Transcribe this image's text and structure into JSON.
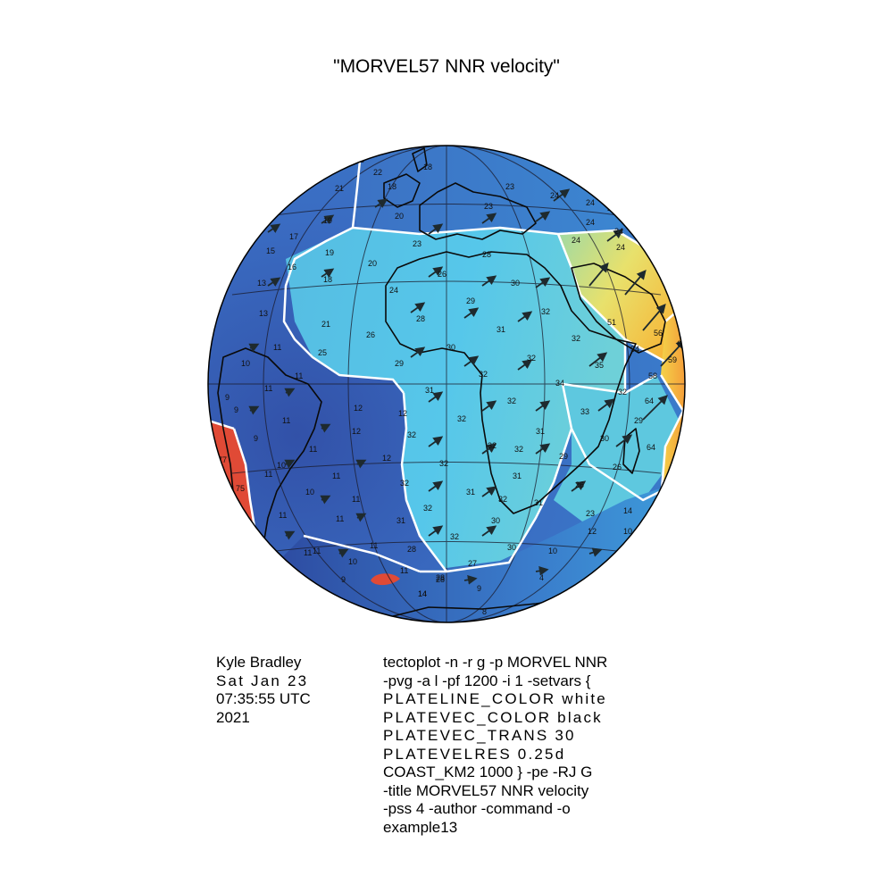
{
  "title": "\"MORVEL57 NNR velocity\"",
  "author": {
    "lines": [
      "Kyle Bradley",
      "Sat Jan 23",
      "07:35:55 UTC",
      "2021"
    ]
  },
  "command": {
    "lines": [
      "tectoplot -n -r g -p MORVEL NNR",
      "-pvg -a l -pf 1200 -i 1 -setvars {",
      "PLATELINE_COLOR white",
      "PLATEVEC_COLOR black",
      "PLATEVEC_TRANS 30",
      "PLATEVELRES 0.25d",
      "COAST_KM2 1000 } -pe -RJ G",
      "-title MORVEL57 NNR velocity",
      "-pss 4 -author -command -o",
      "example13"
    ]
  },
  "velocity_labels": {
    "north_atlantic": [
      "23",
      "22",
      "18",
      "21",
      "18",
      "19",
      "20",
      "17",
      "15",
      "16",
      "18",
      "13",
      "23",
      "21",
      "19",
      "20"
    ],
    "europe": [
      "23",
      "23",
      "24",
      "24",
      "24",
      "24",
      "24",
      "24",
      "24"
    ],
    "africa": [
      "26",
      "28",
      "30",
      "24",
      "29",
      "28",
      "32",
      "31",
      "32",
      "32",
      "26",
      "30",
      "29",
      "32",
      "31",
      "32",
      "32",
      "31",
      "32",
      "32",
      "31",
      "12",
      "32",
      "32",
      "32",
      "31",
      "32",
      "29",
      "30",
      "31",
      "32",
      "30",
      "27",
      "28",
      "32",
      "31",
      "28",
      "34"
    ],
    "arabia_somalia": [
      "51",
      "56",
      "54",
      "35",
      "58",
      "32",
      "33",
      "29",
      "30",
      "26",
      "26",
      "23",
      "12",
      "10",
      "59",
      "60",
      "64",
      "64",
      "14",
      "10"
    ],
    "south_america": [
      "25",
      "11",
      "10",
      "11",
      "11",
      "9",
      "9",
      "11",
      "12",
      "11",
      "11",
      "10",
      "10",
      "12",
      "11",
      "11",
      "11",
      "11",
      "11",
      "10",
      "9",
      "11",
      "14",
      "11",
      "9",
      "13",
      "12",
      "11"
    ],
    "antarctic": [
      "28",
      "9",
      "8",
      "14",
      "4"
    ],
    "pacific_edge": [
      "77",
      "75"
    ]
  },
  "legend": {
    "plate_line_color": "#ffffff",
    "vector_color": "#000000"
  },
  "colors": {
    "ocean_blue": "#3264b8",
    "africa_plate": "#4cc0e6",
    "arabia_plate": "#f6d64a",
    "nazca_edge": "#e24c36",
    "plate_boundary": "#ffffff",
    "coastline": "#000000"
  }
}
